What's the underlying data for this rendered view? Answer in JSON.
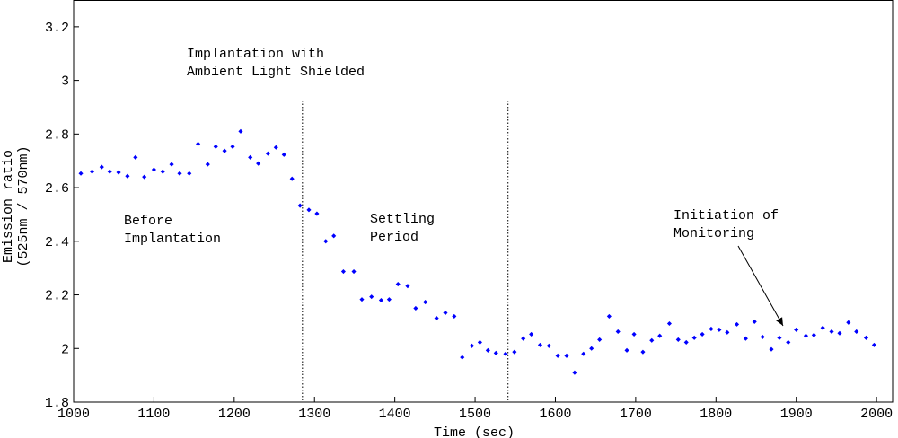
{
  "chart_data": {
    "type": "scatter",
    "xlabel": "Time (sec)",
    "ylabel": [
      "Emission ratio",
      "(525nm / 570nm)"
    ],
    "xlim": [
      1000,
      2020
    ],
    "ylim": [
      1.8,
      3.3
    ],
    "xticks": [
      1000,
      1100,
      1200,
      1300,
      1400,
      1500,
      1600,
      1700,
      1800,
      1900,
      2000
    ],
    "yticks": [
      1.8,
      2,
      2.2,
      2.4,
      2.6,
      2.8,
      3,
      3.2
    ],
    "vlines": [
      1285,
      1541
    ],
    "annotations": [
      {
        "lines": [
          "Implantation with",
          "Ambient Light Shielded"
        ]
      },
      {
        "lines": [
          "Before",
          "Implantation"
        ]
      },
      {
        "lines": [
          "Settling",
          "Period"
        ]
      },
      {
        "lines": [
          "Initiation of",
          "Monitoring"
        ]
      }
    ],
    "series": [
      {
        "color": "#0000ff",
        "x": [
          1009,
          1023,
          1035,
          1045,
          1056,
          1067,
          1077,
          1088,
          1100,
          1111,
          1122,
          1132,
          1144,
          1155,
          1167,
          1177,
          1188,
          1198,
          1208,
          1220,
          1230,
          1242,
          1252,
          1262,
          1272,
          1282,
          1293,
          1303,
          1314,
          1324,
          1336,
          1349,
          1359,
          1371,
          1383,
          1393,
          1404,
          1416,
          1426,
          1438,
          1452,
          1463,
          1474,
          1484,
          1496,
          1506,
          1516,
          1526,
          1538,
          1549,
          1560,
          1570,
          1581,
          1592,
          1603,
          1614,
          1624,
          1635,
          1645,
          1655,
          1667,
          1678,
          1689,
          1698,
          1709,
          1720,
          1730,
          1742,
          1753,
          1763,
          1773,
          1783,
          1794,
          1804,
          1814,
          1826,
          1837,
          1848,
          1858,
          1869,
          1879,
          1890,
          1900,
          1912,
          1922,
          1933,
          1944,
          1954,
          1965,
          1975,
          1987,
          1997
        ],
        "values": [
          2.653,
          2.66,
          2.677,
          2.66,
          2.657,
          2.643,
          2.713,
          2.64,
          2.667,
          2.66,
          2.687,
          2.653,
          2.653,
          2.763,
          2.687,
          2.753,
          2.737,
          2.753,
          2.81,
          2.713,
          2.69,
          2.727,
          2.75,
          2.723,
          2.633,
          2.533,
          2.517,
          2.503,
          2.4,
          2.42,
          2.287,
          2.287,
          2.183,
          2.193,
          2.18,
          2.183,
          2.24,
          2.233,
          2.15,
          2.173,
          2.113,
          2.133,
          2.12,
          1.967,
          2.01,
          2.023,
          1.993,
          1.983,
          1.98,
          1.987,
          2.037,
          2.053,
          2.013,
          2.01,
          1.973,
          1.973,
          1.91,
          1.98,
          2.0,
          2.033,
          2.12,
          2.063,
          1.993,
          2.053,
          1.987,
          2.03,
          2.047,
          2.093,
          2.033,
          2.023,
          2.04,
          2.053,
          2.073,
          2.07,
          2.06,
          2.09,
          2.037,
          2.1,
          2.043,
          1.997,
          2.04,
          2.023,
          2.07,
          2.047,
          2.05,
          2.077,
          2.063,
          2.057,
          2.097,
          2.063,
          2.04,
          2.013
        ]
      }
    ]
  }
}
